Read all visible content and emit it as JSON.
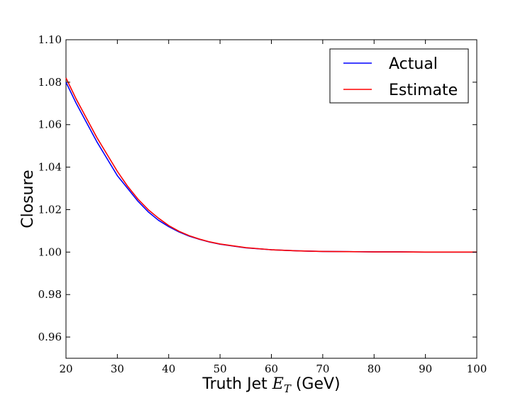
{
  "chart_data": {
    "type": "line",
    "xlabel": {
      "prefix": "Truth Jet ",
      "math_base": "E",
      "math_sub": "T",
      "suffix": " (GeV)"
    },
    "ylabel": "Closure",
    "xlim": [
      20,
      100
    ],
    "ylim": [
      0.95,
      1.1
    ],
    "xticks": [
      20,
      30,
      40,
      50,
      60,
      70,
      80,
      90,
      100
    ],
    "yticks": [
      0.96,
      0.98,
      1.0,
      1.02,
      1.04,
      1.06,
      1.08,
      1.1
    ],
    "xtick_labels": [
      "20",
      "30",
      "40",
      "50",
      "60",
      "70",
      "80",
      "90",
      "100"
    ],
    "ytick_labels": [
      "0.96",
      "0.98",
      "1.00",
      "1.02",
      "1.04",
      "1.06",
      "1.08",
      "1.10"
    ],
    "grid": false,
    "legend_position": "top-right",
    "series": [
      {
        "name": "Actual",
        "color": "#0000ff",
        "x": [
          20,
          22,
          24,
          26,
          28,
          30,
          32,
          34,
          36,
          38,
          40,
          42,
          44,
          46,
          48,
          50,
          55,
          60,
          65,
          70,
          75,
          80,
          85,
          90,
          95,
          100
        ],
        "y": [
          1.08,
          1.07,
          1.061,
          1.052,
          1.044,
          1.036,
          1.03,
          1.024,
          1.019,
          1.015,
          1.012,
          1.0095,
          1.0075,
          1.006,
          1.0047,
          1.0037,
          1.002,
          1.0011,
          1.0006,
          1.0003,
          1.0002,
          1.0001,
          1.0001,
          1.0,
          1.0,
          1.0
        ]
      },
      {
        "name": "Estimate",
        "color": "#ff0000",
        "x": [
          20,
          22,
          24,
          26,
          28,
          30,
          32,
          34,
          36,
          38,
          40,
          42,
          44,
          46,
          48,
          50,
          55,
          60,
          65,
          70,
          75,
          80,
          85,
          90,
          95,
          100
        ],
        "y": [
          1.082,
          1.072,
          1.063,
          1.054,
          1.046,
          1.038,
          1.031,
          1.025,
          1.02,
          1.016,
          1.0125,
          1.0098,
          1.0077,
          1.0061,
          1.0048,
          1.0038,
          1.0021,
          1.0011,
          1.0006,
          1.0003,
          1.0002,
          1.0001,
          1.0001,
          1.0,
          1.0,
          1.0
        ]
      }
    ]
  }
}
